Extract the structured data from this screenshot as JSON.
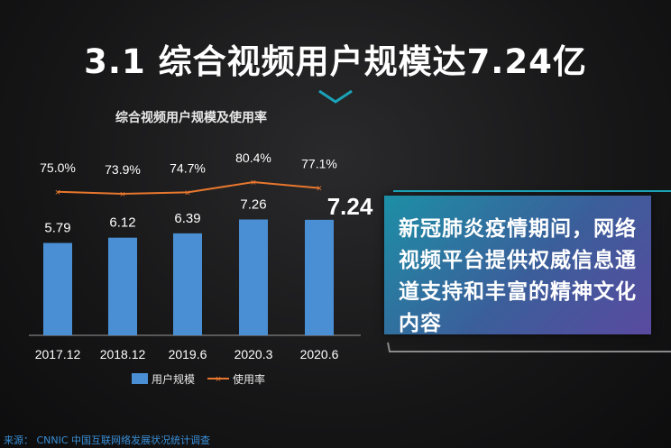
{
  "header": {
    "title": "3.1 综合视频用户规模达7.24亿"
  },
  "chart_data": {
    "type": "bar",
    "title": "综合视频用户规模及使用率",
    "categories": [
      "2017.12",
      "2018.12",
      "2019.6",
      "2020.3",
      "2020.6"
    ],
    "series": [
      {
        "name": "用户规模",
        "type": "bar",
        "values": [
          5.79,
          6.12,
          6.39,
          7.26,
          7.24
        ]
      },
      {
        "name": "使用率",
        "type": "line",
        "values": [
          75.0,
          73.9,
          74.7,
          80.4,
          77.1
        ]
      }
    ],
    "bar_labels": [
      "5.79",
      "6.12",
      "6.39",
      "7.26",
      "7.24"
    ],
    "line_labels": [
      "75.0%",
      "73.9%",
      "74.7%",
      "80.4%",
      "77.1%"
    ],
    "legend_position": "bottom",
    "colors": {
      "bar": "#4a8fd4",
      "line": "#e8772e"
    }
  },
  "callout": {
    "text": "新冠肺炎疫情期间，网络视频平台提供权威信息通道支持和丰富的精神文化内容"
  },
  "footer": {
    "source": "来源： CNNIC 中国互联网络发展状况统计调查"
  }
}
